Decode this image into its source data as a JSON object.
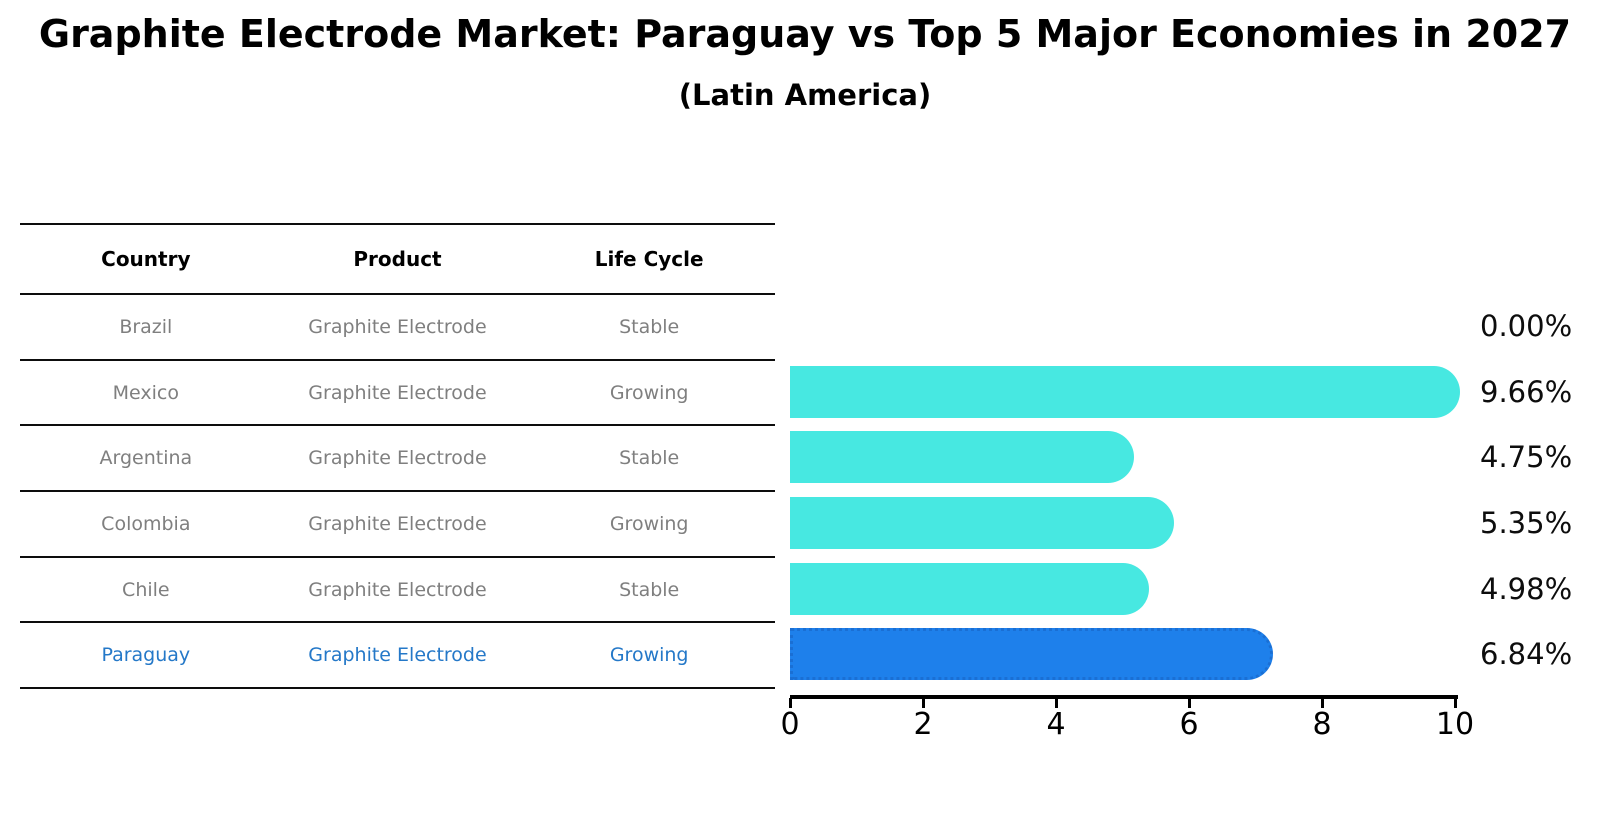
{
  "title": "Graphite Electrode Market: Paraguay vs Top 5 Major Economies in 2027",
  "subtitle": "(Latin America)",
  "table": {
    "headers": [
      "Country",
      "Product",
      "Life Cycle"
    ],
    "rows": [
      {
        "country": "Brazil",
        "product": "Graphite Electrode",
        "life_cycle": "Stable",
        "highlight": false
      },
      {
        "country": "Mexico",
        "product": "Graphite Electrode",
        "life_cycle": "Growing",
        "highlight": false
      },
      {
        "country": "Argentina",
        "product": "Graphite Electrode",
        "life_cycle": "Stable",
        "highlight": false
      },
      {
        "country": "Colombia",
        "product": "Graphite Electrode",
        "life_cycle": "Growing",
        "highlight": false
      },
      {
        "country": "Chile",
        "product": "Graphite Electrode",
        "life_cycle": "Stable",
        "highlight": false
      },
      {
        "country": "Paraguay",
        "product": "Graphite Electrode",
        "life_cycle": "Growing",
        "highlight": true
      }
    ]
  },
  "chart_data": {
    "type": "bar",
    "orientation": "horizontal",
    "title": "Graphite Electrode Market: Paraguay vs Top 5 Major Economies in 2027",
    "subtitle": "(Latin America)",
    "categories": [
      "Brazil",
      "Mexico",
      "Argentina",
      "Colombia",
      "Chile",
      "Paraguay"
    ],
    "values": [
      0.0,
      9.66,
      4.75,
      5.35,
      4.98,
      6.84
    ],
    "value_labels": [
      "0.00%",
      "9.66%",
      "4.75%",
      "5.35%",
      "4.98%",
      "6.84%"
    ],
    "xlabel": "",
    "ylabel": "",
    "xlim": [
      0,
      10
    ],
    "x_ticks": [
      "0",
      "2",
      "4",
      "6",
      "8",
      "10"
    ],
    "grid": false,
    "legend": false,
    "highlight_index": 5,
    "colors": {
      "bar": "#47e8e1",
      "highlight_bar": "#1e80eb",
      "highlight_bar_border": "#1a6fd4",
      "highlight_text": "#2478c8",
      "table_text": "#7f7f7f",
      "axis": "#000000"
    }
  }
}
